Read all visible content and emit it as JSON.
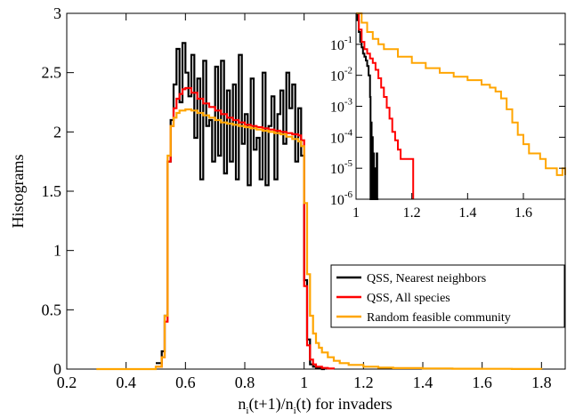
{
  "chart_data": [
    {
      "type": "line",
      "title": "",
      "xlabel": "n_i(t+1)/n_i(t) for invaders",
      "xlabel_parts": {
        "base": "n",
        "sub": "i",
        "mid": "(t+1)/n",
        "sub2": "i",
        "tail": "(t) for invaders"
      },
      "ylabel": "Histograms",
      "xlim": [
        0.2,
        1.88
      ],
      "ylim": [
        0,
        3
      ],
      "xticks": [
        0.2,
        0.4,
        0.6,
        0.8,
        1.0,
        1.2,
        1.4,
        1.6,
        1.8
      ],
      "xtick_labels": [
        "0.2",
        "0.4",
        "0.6",
        "0.8",
        "1",
        "1.2",
        "1.4",
        "1.6",
        "1.8"
      ],
      "yticks": [
        0,
        0.5,
        1,
        1.5,
        2,
        2.5,
        3
      ],
      "ytick_labels": [
        "0",
        "0.5",
        "1",
        "1.5",
        "2",
        "2.5",
        "3"
      ],
      "grid": false,
      "legend_position": "bottom-right",
      "series": [
        {
          "name": "QSS, Nearest neighbors",
          "color": "#000000",
          "step": true,
          "x": [
            0.5,
            0.52,
            0.53,
            0.54,
            0.55,
            0.56,
            0.57,
            0.58,
            0.59,
            0.6,
            0.61,
            0.62,
            0.63,
            0.64,
            0.65,
            0.66,
            0.67,
            0.68,
            0.69,
            0.7,
            0.71,
            0.72,
            0.73,
            0.74,
            0.75,
            0.76,
            0.77,
            0.78,
            0.79,
            0.8,
            0.81,
            0.82,
            0.83,
            0.84,
            0.85,
            0.86,
            0.87,
            0.88,
            0.89,
            0.9,
            0.91,
            0.92,
            0.93,
            0.94,
            0.95,
            0.96,
            0.97,
            0.98,
            0.99,
            1.0,
            1.01,
            1.02,
            1.03,
            1.04,
            1.05,
            1.06,
            1.07
          ],
          "values": [
            0.05,
            0.15,
            0.45,
            1.75,
            2.1,
            2.4,
            2.7,
            2.25,
            2.75,
            2.5,
            2.3,
            2.65,
            1.95,
            2.45,
            1.6,
            2.6,
            2.05,
            2.1,
            1.75,
            2.55,
            1.8,
            2.6,
            1.65,
            2.35,
            1.75,
            2.4,
            1.6,
            2.65,
            1.9,
            2.15,
            1.55,
            2.45,
            1.85,
            1.95,
            1.6,
            2.5,
            1.55,
            2.05,
            2.3,
            1.6,
            2.15,
            2.35,
            1.9,
            2.5,
            2.2,
            2.4,
            1.75,
            2.2,
            1.8,
            0.75,
            0.25,
            0.04,
            0.02,
            0.01,
            0.01,
            0.0,
            0.0
          ]
        },
        {
          "name": "QSS, All species",
          "color": "#ff0000",
          "step": true,
          "x": [
            0.5,
            0.52,
            0.53,
            0.54,
            0.55,
            0.56,
            0.57,
            0.58,
            0.59,
            0.6,
            0.62,
            0.64,
            0.66,
            0.68,
            0.7,
            0.72,
            0.74,
            0.76,
            0.78,
            0.8,
            0.82,
            0.84,
            0.86,
            0.88,
            0.9,
            0.92,
            0.94,
            0.96,
            0.98,
            0.99,
            1.0,
            1.01,
            1.02,
            1.03,
            1.04,
            1.06,
            1.08,
            1.1
          ],
          "values": [
            0.02,
            0.1,
            0.4,
            1.75,
            2.05,
            2.2,
            2.28,
            2.32,
            2.36,
            2.37,
            2.33,
            2.28,
            2.24,
            2.21,
            2.18,
            2.15,
            2.12,
            2.1,
            2.08,
            2.06,
            2.05,
            2.04,
            2.03,
            2.02,
            2.01,
            2.0,
            1.99,
            1.98,
            1.97,
            1.93,
            0.7,
            0.2,
            0.08,
            0.04,
            0.02,
            0.01,
            0.005,
            0.0
          ]
        },
        {
          "name": "Random feasible community",
          "color": "#ffa500",
          "step": true,
          "x": [
            0.3,
            0.45,
            0.5,
            0.52,
            0.53,
            0.54,
            0.55,
            0.56,
            0.57,
            0.58,
            0.6,
            0.62,
            0.64,
            0.66,
            0.68,
            0.7,
            0.72,
            0.74,
            0.76,
            0.78,
            0.8,
            0.82,
            0.84,
            0.86,
            0.88,
            0.9,
            0.92,
            0.94,
            0.96,
            0.98,
            0.99,
            1.0,
            1.01,
            1.02,
            1.03,
            1.04,
            1.05,
            1.06,
            1.08,
            1.1,
            1.12,
            1.15,
            1.2,
            1.25,
            1.3,
            1.4,
            1.5,
            1.6,
            1.7,
            1.8
          ],
          "values": [
            0.0,
            0.0,
            0.02,
            0.1,
            0.45,
            1.8,
            2.05,
            2.12,
            2.16,
            2.18,
            2.19,
            2.18,
            2.16,
            2.14,
            2.12,
            2.1,
            2.08,
            2.07,
            2.06,
            2.05,
            2.04,
            2.03,
            2.02,
            2.01,
            2.0,
            1.99,
            1.98,
            1.96,
            1.94,
            1.92,
            1.88,
            1.4,
            0.8,
            0.45,
            0.3,
            0.22,
            0.18,
            0.14,
            0.1,
            0.07,
            0.05,
            0.035,
            0.02,
            0.012,
            0.008,
            0.005,
            0.003,
            0.002,
            0.001,
            0.0
          ]
        }
      ]
    },
    {
      "type": "line",
      "title": "",
      "xlabel": "",
      "ylabel": "",
      "xlim": [
        1.0,
        1.75
      ],
      "ylim_log10": [
        -6,
        0
      ],
      "yscale": "log",
      "xticks": [
        1.0,
        1.2,
        1.4,
        1.6
      ],
      "xtick_labels": [
        "1",
        "1.2",
        "1.4",
        "1.6"
      ],
      "yticks_exponents": [
        -6,
        -5,
        -4,
        -3,
        -2,
        -1
      ],
      "ytick_base": "10",
      "grid": false,
      "series": [
        {
          "name": "QSS, Nearest neighbors",
          "color": "#000000",
          "x": [
            1.0,
            1.005,
            1.01,
            1.015,
            1.02,
            1.025,
            1.03,
            1.035,
            1.04,
            1.045,
            1.05,
            1.052,
            1.054,
            1.056,
            1.058,
            1.06,
            1.062,
            1.064,
            1.066,
            1.068,
            1.07,
            1.072,
            1.074,
            1.076,
            1.078,
            1.08
          ],
          "values": [
            1.0,
            0.6,
            0.25,
            0.12,
            0.08,
            0.05,
            0.04,
            0.03,
            0.02,
            0.01,
            0.002,
            1e-06,
            0.0003,
            1e-06,
            0.0001,
            1e-06,
            3e-05,
            1e-06,
            1e-05,
            1e-06,
            3e-06,
            1e-06,
            3e-05,
            1e-06,
            1e-06,
            1e-06
          ]
        },
        {
          "name": "QSS, All species",
          "color": "#ff0000",
          "x": [
            1.0,
            1.01,
            1.02,
            1.03,
            1.04,
            1.05,
            1.06,
            1.07,
            1.08,
            1.09,
            1.1,
            1.11,
            1.12,
            1.13,
            1.14,
            1.15,
            1.16,
            1.17,
            1.18,
            1.19,
            1.2,
            1.205
          ],
          "values": [
            1.0,
            0.3,
            0.12,
            0.07,
            0.05,
            0.035,
            0.025,
            0.015,
            0.008,
            0.004,
            0.002,
            0.0009,
            0.0004,
            0.00015,
            8e-05,
            4e-05,
            2e-05,
            2e-05,
            2e-05,
            2e-05,
            2e-05,
            1e-06
          ]
        },
        {
          "name": "Random feasible community",
          "color": "#ffa500",
          "x": [
            1.0,
            1.02,
            1.04,
            1.06,
            1.08,
            1.1,
            1.15,
            1.2,
            1.25,
            1.3,
            1.35,
            1.4,
            1.45,
            1.48,
            1.5,
            1.52,
            1.54,
            1.56,
            1.58,
            1.6,
            1.62,
            1.64,
            1.66,
            1.68,
            1.7,
            1.72,
            1.74,
            1.75
          ],
          "values": [
            1.0,
            0.5,
            0.25,
            0.15,
            0.1,
            0.07,
            0.04,
            0.025,
            0.017,
            0.012,
            0.009,
            0.007,
            0.005,
            0.004,
            0.003,
            0.0018,
            0.0008,
            0.0003,
            0.00012,
            6e-05,
            3e-05,
            3e-05,
            2e-05,
            1e-05,
            1e-05,
            6e-06,
            1e-05,
            6e-06
          ]
        }
      ]
    }
  ]
}
